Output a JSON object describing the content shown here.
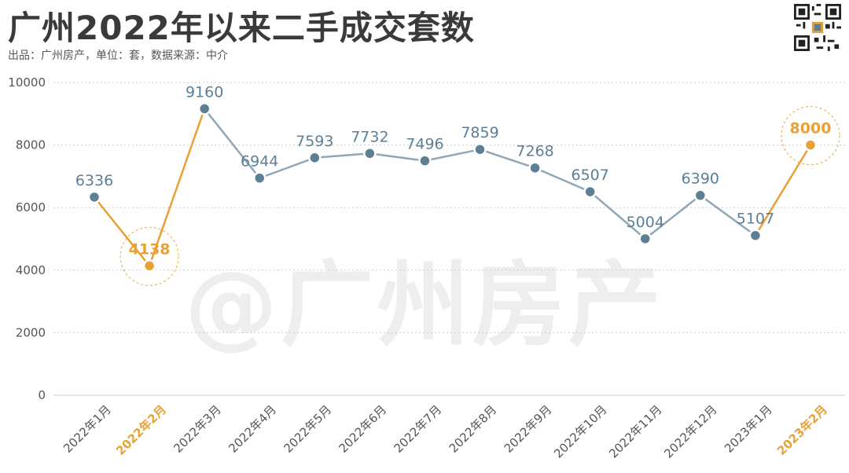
{
  "header": {
    "title": "广州2022年以来二手成交套数",
    "subtitle": "出品：广州房产，单位：套，数据来源：中介"
  },
  "watermark": "@广州房产",
  "colors": {
    "line": "#8fa8b8",
    "point": "#5c7f96",
    "label": "#5c7f96",
    "highlight": "#e8a132",
    "grid": "#cccccc",
    "axis_text": "#555555"
  },
  "chart_data": {
    "type": "line",
    "categories": [
      "2022年1月",
      "2022年2月",
      "2022年3月",
      "2022年4月",
      "2022年5月",
      "2022年6月",
      "2022年7月",
      "2022年8月",
      "2022年9月",
      "2022年10月",
      "2022年11月",
      "2022年12月",
      "2023年1月",
      "2023年2月"
    ],
    "values": [
      6336,
      4138,
      9160,
      6944,
      7593,
      7732,
      7496,
      7859,
      7268,
      6507,
      5004,
      6390,
      5107,
      8000
    ],
    "highlighted": [
      "2022年2月",
      "2023年2月"
    ],
    "ylim": [
      0,
      10000
    ],
    "yticks": [
      0,
      2000,
      4000,
      6000,
      8000,
      10000
    ],
    "grid": true,
    "xlabel": "",
    "ylabel": ""
  }
}
